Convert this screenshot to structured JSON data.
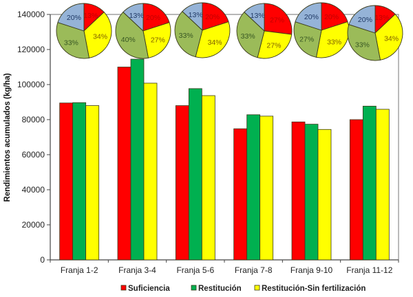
{
  "chart_data": {
    "type": "bar",
    "title": "",
    "xlabel": "",
    "ylabel": "Rendimientos acumulados (kg/ha)",
    "ylim": [
      0,
      140000
    ],
    "yticks": [
      0,
      20000,
      40000,
      60000,
      80000,
      100000,
      120000,
      140000
    ],
    "grid": false,
    "legend_position": "bottom",
    "categories": [
      "Franja 1-2",
      "Franja 3-4",
      "Franja 5-6",
      "Franja 7-8",
      "Franja 9-10",
      "Franja 11-12"
    ],
    "series": [
      {
        "name": "Suficiencia",
        "color": "#ff0000",
        "values": [
          89500,
          110000,
          88000,
          74800,
          78700,
          80000
        ]
      },
      {
        "name": "Restitución",
        "color": "#00b050",
        "values": [
          89700,
          114500,
          97700,
          82800,
          77400,
          87700
        ]
      },
      {
        "name": "Restitución-Sin fertilización",
        "color": "#ffff00",
        "values": [
          88000,
          100800,
          93700,
          82000,
          74400,
          85900
        ]
      }
    ],
    "inset_pies": {
      "type": "pie",
      "slice_order": [
        "red",
        "yellow",
        "green",
        "blue"
      ],
      "slice_colors": {
        "red": "#ff0000",
        "yellow": "#ffff00",
        "green": "#9bbb59",
        "blue": "#95b3d7"
      },
      "label_colors": {
        "red": "#c00000",
        "yellow": "#7f6000",
        "green": "#375623",
        "blue": "#1f3864"
      },
      "pies": [
        {
          "category": "Franja 1-2",
          "slices": {
            "red": 13,
            "yellow": 34,
            "green": 33,
            "blue": 20
          }
        },
        {
          "category": "Franja 3-4",
          "slices": {
            "red": 20,
            "yellow": 27,
            "green": 40,
            "blue": 13
          }
        },
        {
          "category": "Franja 5-6",
          "slices": {
            "red": 20,
            "yellow": 34,
            "green": 33,
            "blue": 13
          }
        },
        {
          "category": "Franja 7-8",
          "slices": {
            "red": 27,
            "yellow": 27,
            "green": 33,
            "blue": 13
          }
        },
        {
          "category": "Franja 9-10",
          "slices": {
            "red": 20,
            "yellow": 33,
            "green": 27,
            "blue": 20
          }
        },
        {
          "category": "Franja 11-12",
          "slices": {
            "red": 13,
            "yellow": 34,
            "green": 33,
            "blue": 20
          }
        }
      ]
    }
  }
}
